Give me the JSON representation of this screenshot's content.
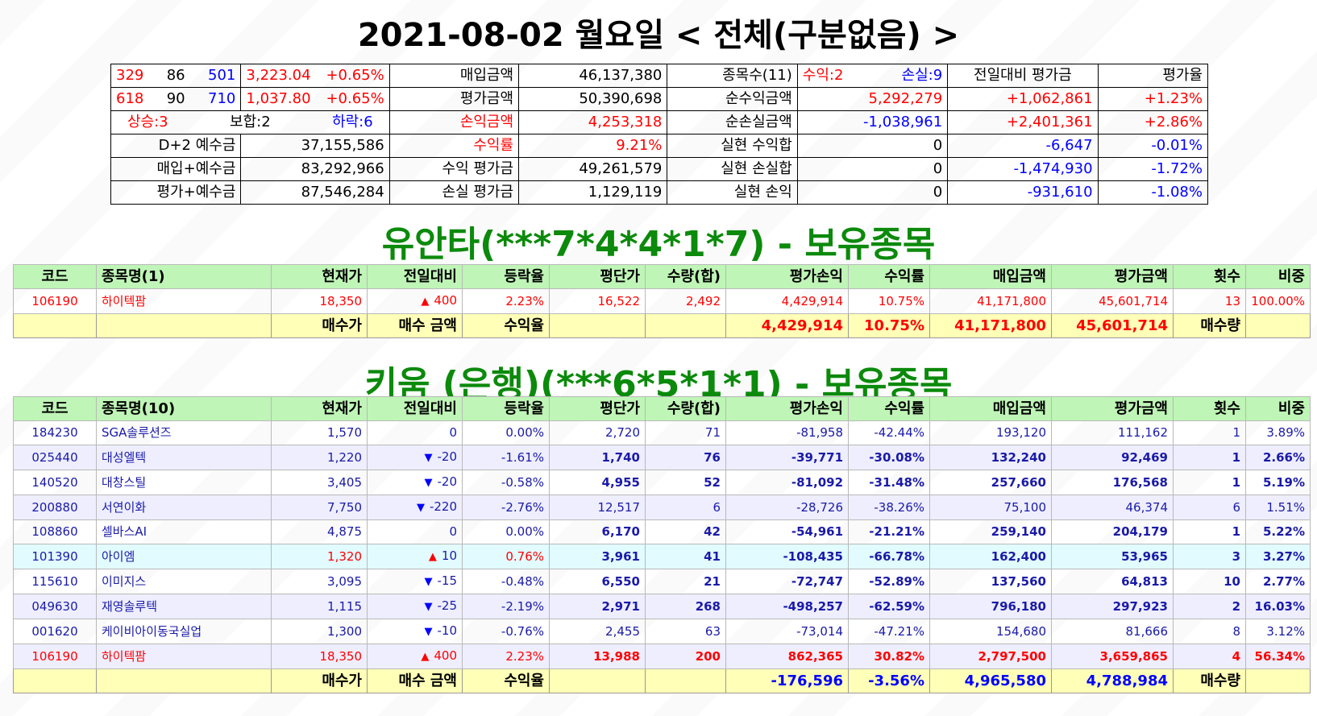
{
  "main_title": "2021-08-02 월요일 < 전체(구분없음) >",
  "summary": {
    "r1": {
      "a": "329",
      "b": "86",
      "c": "501",
      "idx": "3,223.04",
      "pct": "+0.65%",
      "l1": "매입금액",
      "v1": "46,137,380",
      "l2": "종목수(11)",
      "gain": "수익:2",
      "loss": "손실:9",
      "l3": "전일대비 평가금",
      "l4": "평가율"
    },
    "r2": {
      "a": "618",
      "b": "90",
      "c": "710",
      "idx": "1,037.80",
      "pct": "+0.65%",
      "l1": "평가금액",
      "v1": "50,390,698",
      "l2": "순수익금액",
      "v2": "5,292,279",
      "v3": "+1,062,861",
      "v4": "+1.23%"
    },
    "r3": {
      "up": "상승:3",
      "flat": "보합:2",
      "down": "하락:6",
      "l1": "손익금액",
      "v1": "4,253,318",
      "l2": "순손실금액",
      "v2": "-1,038,961",
      "v3": "+2,401,361",
      "v4": "+2.86%"
    },
    "r4": {
      "l0": "D+2 예수금",
      "v0": "37,155,586",
      "l1": "수익률",
      "v1": "9.21%",
      "l2": "실현 수익합",
      "v2": "0",
      "v3": "-6,647",
      "v4": "-0.01%"
    },
    "r5": {
      "l0": "매입+예수금",
      "v0": "83,292,966",
      "l1": "수익 평가금",
      "v1": "49,261,579",
      "l2": "실현 손실합",
      "v2": "0",
      "v3": "-1,474,930",
      "v4": "-1.72%"
    },
    "r6": {
      "l0": "평가+예수금",
      "v0": "87,546,284",
      "l1": "손실 평가금",
      "v1": "1,129,119",
      "l2": "실현 손익",
      "v2": "0",
      "v3": "-931,610",
      "v4": "-1.08%"
    }
  },
  "acct1": {
    "title": "유안타(***7*4*4*1*7) - 보유종목",
    "headers": [
      "코드",
      "종목명(1)",
      "현재가",
      "전일대비",
      "등락율",
      "평단가",
      "수량(합)",
      "평가손익",
      "수익률",
      "매입금액",
      "평가금액",
      "횟수",
      "비중"
    ],
    "rows": [
      {
        "code": "106190",
        "name": "하이텍팜",
        "price": "18,350",
        "chg": "400",
        "rate": "2.23%",
        "avg": "16,522",
        "qty": "2,492",
        "pl": "4,429,914",
        "ret": "10.75%",
        "buy": "41,171,800",
        "eval": "45,601,714",
        "cnt": "13",
        "wt": "100.00%"
      }
    ],
    "total": {
      "l1": "매수가",
      "l2": "매수 금액",
      "l3": "수익율",
      "pl": "4,429,914",
      "ret": "10.75%",
      "buy": "41,171,800",
      "eval": "45,601,714",
      "l4": "매수량"
    }
  },
  "acct2": {
    "title": "키움 (은행)(***6*5*1*1) - 보유종목",
    "headers": [
      "코드",
      "종목명(10)",
      "현재가",
      "전일대비",
      "등락율",
      "평단가",
      "수량(합)",
      "평가손익",
      "수익률",
      "매입금액",
      "평가금액",
      "횟수",
      "비중"
    ],
    "rows": [
      {
        "code": "184230",
        "name": "SGA솔루션즈",
        "price": "1,570",
        "chg": "0",
        "rate": "0.00%",
        "avg": "2,720",
        "qty": "71",
        "pl": "-81,958",
        "ret": "-42.44%",
        "buy": "193,120",
        "eval": "111,162",
        "cnt": "1",
        "wt": "3.89%"
      },
      {
        "code": "025440",
        "name": "대성엘텍",
        "price": "1,220",
        "chg": "-20",
        "rate": "-1.61%",
        "avg": "1,740",
        "qty": "76",
        "pl": "-39,771",
        "ret": "-30.08%",
        "buy": "132,240",
        "eval": "92,469",
        "cnt": "1",
        "wt": "2.66%"
      },
      {
        "code": "140520",
        "name": "대창스틸",
        "price": "3,405",
        "chg": "-20",
        "rate": "-0.58%",
        "avg": "4,955",
        "qty": "52",
        "pl": "-81,092",
        "ret": "-31.48%",
        "buy": "257,660",
        "eval": "176,568",
        "cnt": "1",
        "wt": "5.19%"
      },
      {
        "code": "200880",
        "name": "서연이화",
        "price": "7,750",
        "chg": "-220",
        "rate": "-2.76%",
        "avg": "12,517",
        "qty": "6",
        "pl": "-28,726",
        "ret": "-38.26%",
        "buy": "75,100",
        "eval": "46,374",
        "cnt": "6",
        "wt": "1.51%"
      },
      {
        "code": "108860",
        "name": "셀바스AI",
        "price": "4,875",
        "chg": "0",
        "rate": "0.00%",
        "avg": "6,170",
        "qty": "42",
        "pl": "-54,961",
        "ret": "-21.21%",
        "buy": "259,140",
        "eval": "204,179",
        "cnt": "1",
        "wt": "5.22%"
      },
      {
        "code": "101390",
        "name": "아이엠",
        "price": "1,320",
        "chg": "10",
        "rate": "0.76%",
        "avg": "3,961",
        "qty": "41",
        "pl": "-108,435",
        "ret": "-66.78%",
        "buy": "162,400",
        "eval": "53,965",
        "cnt": "3",
        "wt": "3.27%"
      },
      {
        "code": "115610",
        "name": "이미지스",
        "price": "3,095",
        "chg": "-15",
        "rate": "-0.48%",
        "avg": "6,550",
        "qty": "21",
        "pl": "-72,747",
        "ret": "-52.89%",
        "buy": "137,560",
        "eval": "64,813",
        "cnt": "10",
        "wt": "2.77%"
      },
      {
        "code": "049630",
        "name": "재영솔루텍",
        "price": "1,115",
        "chg": "-25",
        "rate": "-2.19%",
        "avg": "2,971",
        "qty": "268",
        "pl": "-498,257",
        "ret": "-62.59%",
        "buy": "796,180",
        "eval": "297,923",
        "cnt": "2",
        "wt": "16.03%"
      },
      {
        "code": "001620",
        "name": "케이비아이동국실업",
        "price": "1,300",
        "chg": "-10",
        "rate": "-0.76%",
        "avg": "2,455",
        "qty": "63",
        "pl": "-73,014",
        "ret": "-47.21%",
        "buy": "154,680",
        "eval": "81,666",
        "cnt": "8",
        "wt": "3.12%"
      },
      {
        "code": "106190",
        "name": "하이텍팜",
        "price": "18,350",
        "chg": "400",
        "rate": "2.23%",
        "avg": "13,988",
        "qty": "200",
        "pl": "862,365",
        "ret": "30.82%",
        "buy": "2,797,500",
        "eval": "3,659,865",
        "cnt": "4",
        "wt": "56.34%"
      }
    ],
    "total": {
      "l1": "매수가",
      "l2": "매수 금액",
      "l3": "수익율",
      "pl": "-176,596",
      "ret": "-3.56%",
      "buy": "4,965,580",
      "eval": "4,788,984",
      "l4": "매수량"
    }
  },
  "colors": {
    "header_bg": "#bff5b6",
    "total_bg": "#ffffb7",
    "title_green": "#0b8a0b",
    "alt_row": "#eeeeff",
    "highlight_row": "#e1fbff"
  }
}
